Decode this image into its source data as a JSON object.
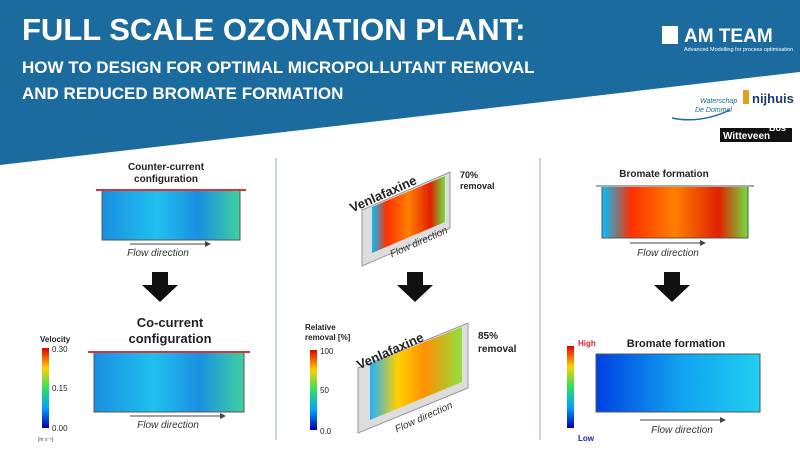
{
  "header": {
    "title": "FULL SCALE OZONATION PLANT:",
    "subtitle": [
      "HOW TO DESIGN FOR OPTIMAL MICROPOLLUTANT REMOVAL",
      "AND REDUCED BROMATE FORMATION"
    ]
  },
  "logo": {
    "name": "AM TEAM",
    "tagline": "Advanced Modelling for process optimisation"
  },
  "partners": {
    "waterschap": [
      "Waterschap",
      "De Dommel"
    ],
    "nijhuis": "nijhuis",
    "witteveen": [
      "Witteveen",
      "Bos"
    ]
  },
  "panels": [
    {
      "top_title": [
        "Counter-current",
        "configuration"
      ],
      "top_caption": "Flow direction",
      "bottom_title": [
        "Co-current",
        "configuration"
      ],
      "bottom_caption": "Flow direction",
      "colorbar": {
        "label": "Velocity",
        "ticks": [
          "0.30",
          "0.15",
          "0.00"
        ],
        "unit": "[m s⁻¹]"
      }
    },
    {
      "top_title": "Venlafaxine",
      "top_note": [
        "70%",
        "removal"
      ],
      "top_caption": "Flow direction",
      "bottom_title": "Venlafaxine",
      "bottom_note": [
        "85%",
        "removal"
      ],
      "bottom_caption": "Flow direction",
      "colorbar": {
        "label": [
          "Relative",
          "removal [%]"
        ],
        "ticks": [
          "100",
          "50",
          "0.0"
        ]
      }
    },
    {
      "top_title": "Bromate formation",
      "top_caption": "Flow direction",
      "bottom_title": "Bromate formation",
      "bottom_caption": "Flow direction",
      "colorbar": {
        "ticks": [
          "High",
          "Low"
        ]
      }
    }
  ]
}
